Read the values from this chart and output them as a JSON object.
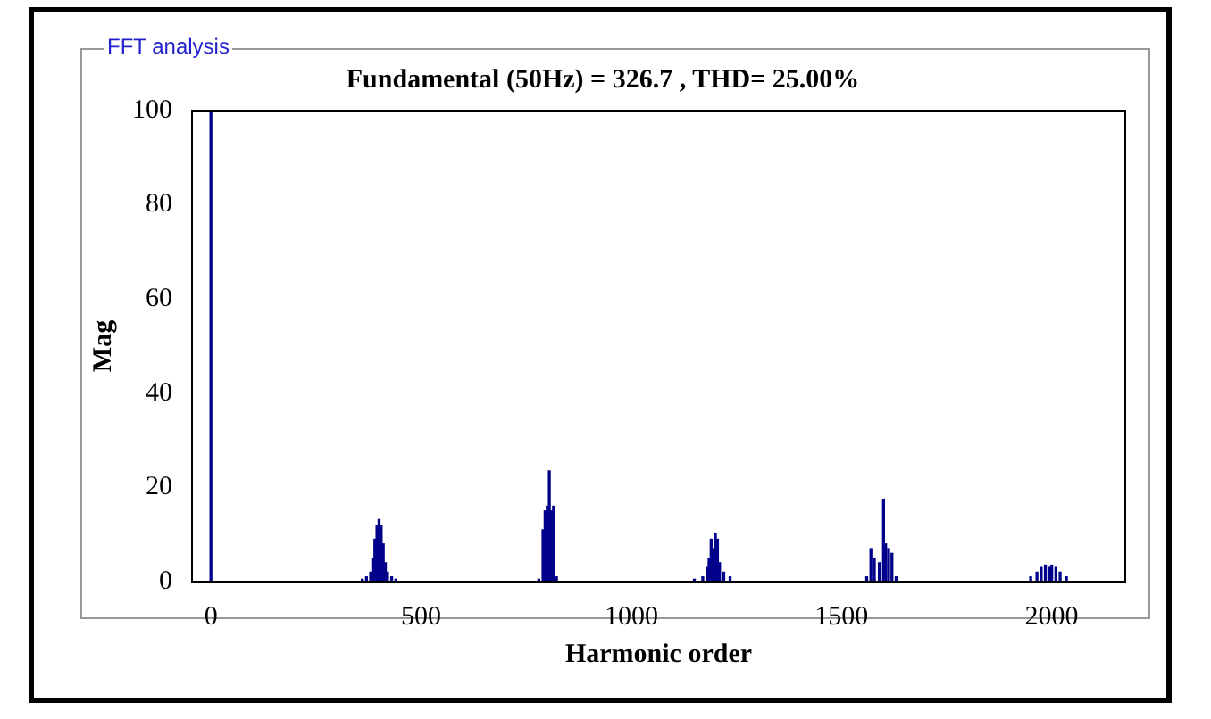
{
  "chart_data": {
    "type": "bar",
    "title": "Fundamental (50Hz) = 326.7 , THD= 25.00%",
    "xlabel": "Harmonic order",
    "ylabel": "Mag",
    "annotations": [
      "FFT analysis"
    ],
    "x": [
      0,
      360,
      370,
      380,
      385,
      390,
      395,
      400,
      405,
      410,
      415,
      420,
      430,
      440,
      780,
      790,
      795,
      800,
      805,
      810,
      815,
      822,
      1150,
      1170,
      1180,
      1185,
      1190,
      1195,
      1200,
      1205,
      1210,
      1220,
      1235,
      1560,
      1570,
      1578,
      1590,
      1600,
      1605,
      1612,
      1620,
      1630,
      1950,
      1965,
      1975,
      1985,
      1995,
      2000,
      2010,
      2020,
      2035
    ],
    "series": [
      {
        "color": "#00008b",
        "values": [
          100,
          0.5,
          1,
          2,
          5,
          9,
          12,
          13.2,
          12,
          8,
          4,
          2,
          1,
          0.5,
          0.5,
          11,
          15,
          16,
          23.5,
          15,
          16,
          1,
          0.5,
          1,
          3,
          5,
          9,
          7,
          10.3,
          9,
          4,
          2,
          1,
          1,
          7,
          5,
          4,
          17.5,
          8,
          7,
          6,
          1,
          1,
          2,
          3,
          3.5,
          3,
          3.5,
          3,
          2,
          1
        ]
      }
    ],
    "xlim": [
      -45,
      2175
    ],
    "xticks": [
      0,
      500,
      1000,
      1500,
      2000
    ],
    "ylim": [
      0,
      100
    ],
    "yticks": [
      0,
      20,
      40,
      60,
      80,
      100
    ],
    "grid": false,
    "legend": false
  }
}
